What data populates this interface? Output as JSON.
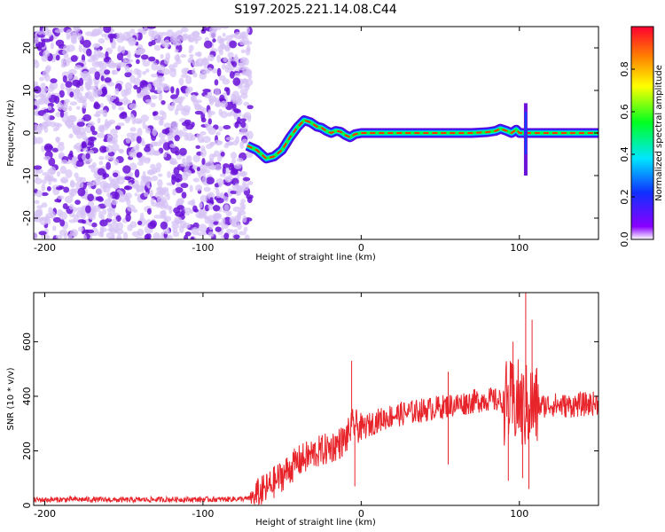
{
  "title": "S197.2025.221.14.08.C44",
  "colors": {
    "snr_line": "#e8242b",
    "background": "#ffffff",
    "noise_light": "#d6c2f5",
    "noise_dark": "#6a12d8"
  },
  "chart_data": [
    {
      "type": "heatmap",
      "name": "spectrogram",
      "xlabel": "Height of straight line (km)",
      "ylabel": "Frequency (Hz)",
      "xlim": [
        -207,
        150
      ],
      "ylim": [
        -25,
        25
      ],
      "xticks": [
        -200,
        -100,
        0,
        100
      ],
      "yticks": [
        -20,
        -10,
        0,
        10,
        20
      ],
      "colorbar": {
        "label": "Normalized spectral amplitude",
        "range": [
          0,
          1
        ],
        "ticks": [
          0.0,
          0.2,
          0.4,
          0.6,
          0.8
        ]
      },
      "noise_region_km": [
        -207,
        -70
      ],
      "signal_track": {
        "x": [
          -72,
          -66,
          -60,
          -55,
          -50,
          -45,
          -40,
          -36,
          -32,
          -28,
          -25,
          -22,
          -19,
          -16,
          -13,
          -10,
          -7,
          -4,
          0,
          10,
          30,
          50,
          70,
          80,
          85,
          88,
          92,
          95,
          98,
          100,
          104,
          110,
          130,
          150
        ],
        "y": [
          -3,
          -4,
          -6,
          -5.5,
          -4,
          -1,
          1.5,
          3,
          2.5,
          1.5,
          1.2,
          0.5,
          0,
          0.5,
          0.3,
          -0.5,
          -1,
          -0.3,
          0,
          0,
          0,
          0,
          0,
          0.2,
          0.5,
          1,
          0.5,
          0,
          0.8,
          0,
          0,
          0,
          0,
          0
        ]
      },
      "spike_at_km": 104
    },
    {
      "type": "line",
      "name": "snr",
      "xlabel": "Height of straight line (km)",
      "ylabel": "SNR (10 * v/v)",
      "xlim": [
        -207,
        150
      ],
      "ylim": [
        0,
        780
      ],
      "xticks": [
        -200,
        -100,
        0,
        100
      ],
      "yticks": [
        0,
        200,
        400,
        600
      ],
      "series": [
        {
          "name": "SNR",
          "x": [
            -207,
            -180,
            -150,
            -120,
            -90,
            -70,
            -60,
            -50,
            -40,
            -30,
            -20,
            -10,
            -5,
            0,
            10,
            20,
            30,
            40,
            50,
            60,
            70,
            80,
            85,
            90,
            95,
            100,
            102,
            104,
            106,
            108,
            110,
            120,
            130,
            140,
            150
          ],
          "y": [
            20,
            22,
            20,
            22,
            22,
            25,
            60,
            110,
            160,
            190,
            210,
            240,
            300,
            280,
            310,
            330,
            340,
            350,
            360,
            370,
            380,
            390,
            385,
            380,
            370,
            380,
            350,
            360,
            370,
            365,
            360,
            370,
            365,
            370,
            375
          ]
        }
      ],
      "spikes": [
        {
          "x": -6,
          "y": 530
        },
        {
          "x": -4,
          "y": 70
        },
        {
          "x": 55,
          "y": 490
        },
        {
          "x": 55,
          "y": 150
        },
        {
          "x": 93,
          "y": 90
        },
        {
          "x": 96,
          "y": 600
        },
        {
          "x": 102,
          "y": 100
        },
        {
          "x": 104,
          "y": 780
        },
        {
          "x": 106,
          "y": 60
        },
        {
          "x": 108,
          "y": 680
        }
      ]
    }
  ]
}
